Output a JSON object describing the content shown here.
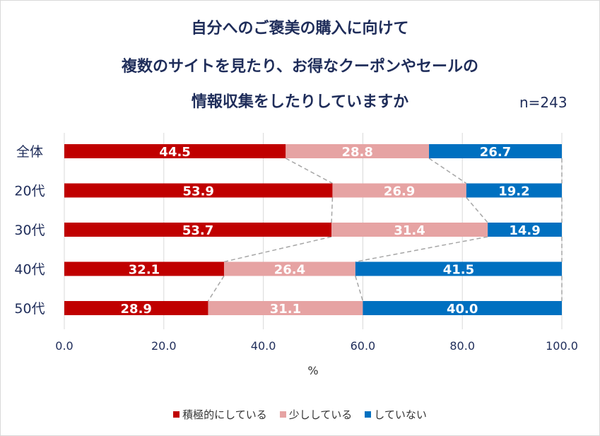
{
  "title_lines": [
    "自分へのご褒美の購入に向けて",
    "複数のサイトを見たり、お得なクーポンやセールの",
    "情報収集をしたりしていますか"
  ],
  "n_label": "n=243",
  "chart_data": {
    "type": "bar",
    "orientation": "horizontal",
    "stacked": true,
    "categories": [
      "全体",
      "20代",
      "30代",
      "40代",
      "50代"
    ],
    "series": [
      {
        "name": "積極的にしている",
        "color": "#c00000",
        "values": [
          44.5,
          53.9,
          53.7,
          32.1,
          28.9
        ]
      },
      {
        "name": "少ししている",
        "color": "#e6a3a3",
        "values": [
          28.8,
          26.9,
          31.4,
          26.4,
          31.1
        ]
      },
      {
        "name": "していない",
        "color": "#0070c0",
        "values": [
          26.7,
          19.2,
          14.9,
          41.5,
          40.0
        ]
      }
    ],
    "xlabel": "%",
    "xlim": [
      0,
      100
    ],
    "xticks": [
      "0.0",
      "20.0",
      "40.0",
      "60.0",
      "80.0",
      "100.0"
    ],
    "grid": true,
    "series_lines": true,
    "legend_position": "bottom"
  }
}
